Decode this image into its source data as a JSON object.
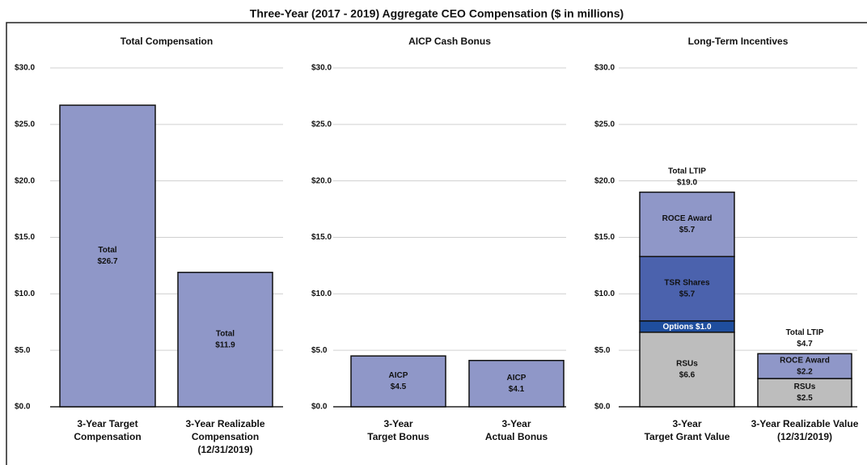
{
  "title": "Three-Year (2017 - 2019) Aggregate CEO Compensation ($ in millions)",
  "chart_data": [
    {
      "type": "bar",
      "title": "Total Compensation",
      "categories": [
        [
          "3-Year Target",
          "Compensation"
        ],
        [
          "3-Year Realizable",
          "Compensation",
          "(12/31/2019)"
        ]
      ],
      "series": [
        {
          "name": "Total",
          "color": "#8f97c8",
          "values": [
            26.7,
            11.9
          ],
          "value_labels": [
            "$26.7",
            "$11.9"
          ]
        }
      ],
      "ylim": [
        0,
        30
      ],
      "yticks": [
        {
          "value": 0,
          "label": "$0.0"
        },
        {
          "value": 5,
          "label": "$5.0"
        },
        {
          "value": 10,
          "label": "$10.0"
        },
        {
          "value": 15,
          "label": "$15.0"
        },
        {
          "value": 20,
          "label": "$20.0"
        },
        {
          "value": 25,
          "label": "$25.0"
        },
        {
          "value": 30,
          "label": "$30.0"
        }
      ],
      "grid": true
    },
    {
      "type": "bar",
      "title": "AICP Cash Bonus",
      "categories": [
        [
          "3-Year",
          "Target Bonus"
        ],
        [
          "3-Year",
          "Actual Bonus"
        ]
      ],
      "series": [
        {
          "name": "AICP",
          "color": "#8f97c8",
          "values": [
            4.5,
            4.1
          ],
          "value_labels": [
            "$4.5",
            "$4.1"
          ]
        }
      ],
      "ylim": [
        0,
        30
      ],
      "yticks": [
        {
          "value": 0,
          "label": "$0.0"
        },
        {
          "value": 5,
          "label": "$5.0"
        },
        {
          "value": 10,
          "label": "$10.0"
        },
        {
          "value": 15,
          "label": "$15.0"
        },
        {
          "value": 20,
          "label": "$20.0"
        },
        {
          "value": 25,
          "label": "$25.0"
        },
        {
          "value": 30,
          "label": "$30.0"
        }
      ],
      "grid": true
    },
    {
      "type": "stacked_bar",
      "title": "Long-Term Incentives",
      "categories": [
        [
          "3-Year",
          "Target Grant Value"
        ],
        [
          "3-Year Realizable Value",
          "(12/31/2019)"
        ]
      ],
      "series": [
        {
          "name": "RSUs",
          "color": "#bdbdbd",
          "values": [
            6.6,
            2.5
          ],
          "value_labels": [
            "$6.6",
            "$2.5"
          ]
        },
        {
          "name": "Options",
          "color": "#1f4e9e",
          "values": [
            1.0,
            null
          ],
          "value_labels": [
            "$1.0",
            null
          ]
        },
        {
          "name": "TSR Shares",
          "color": "#4b62ad",
          "values": [
            5.7,
            null
          ],
          "value_labels": [
            "$5.7",
            null
          ]
        },
        {
          "name": "ROCE Award",
          "color": "#8f97c8",
          "values": [
            5.7,
            2.2
          ],
          "value_labels": [
            "$5.7",
            "$2.2"
          ]
        }
      ],
      "total_name": "Total LTIP",
      "totals": [
        19.0,
        4.7
      ],
      "total_labels": [
        "$19.0",
        "$4.7"
      ],
      "ylim": [
        0,
        30
      ],
      "yticks": [
        {
          "value": 0,
          "label": "$0.0"
        },
        {
          "value": 5,
          "label": "$5.0"
        },
        {
          "value": 10,
          "label": "$10.0"
        },
        {
          "value": 15,
          "label": "$15.0"
        },
        {
          "value": 20,
          "label": "$20.0"
        },
        {
          "value": 25,
          "label": "$25.0"
        },
        {
          "value": 30,
          "label": "$30.0"
        }
      ],
      "grid": true
    }
  ]
}
